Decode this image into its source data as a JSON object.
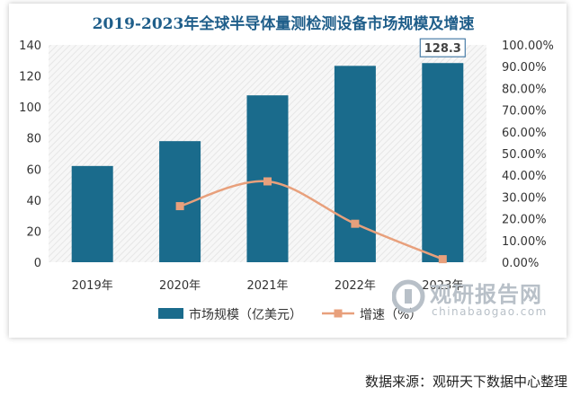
{
  "source": "数据来源：观研天下数据中心整理",
  "watermark": {
    "main": "观研报告网",
    "sub": "chinabaogao.com"
  },
  "chart_data": {
    "type": "bar",
    "title": "2019-2023年全球半导体量测检测设备市场规模及增速",
    "categories": [
      "2019年",
      "2020年",
      "2021年",
      "2022年",
      "2023年"
    ],
    "ylim": [
      0,
      140
    ],
    "y_ticks": [
      "0",
      "20",
      "40",
      "60",
      "80",
      "100",
      "120",
      "140"
    ],
    "y2lim": [
      0,
      100
    ],
    "y2_ticks": [
      "0.00%",
      "10.00%",
      "20.00%",
      "30.00%",
      "40.00%",
      "50.00%",
      "60.00%",
      "70.00%",
      "80.00%",
      "90.00%",
      "100.00%"
    ],
    "series": [
      {
        "name": "市场规模（亿美元）",
        "type": "bar",
        "axis": "left",
        "color": "#1a6b8c",
        "values": [
          62,
          78,
          107.5,
          126.5,
          128.3
        ]
      },
      {
        "name": "增速（%）",
        "type": "line",
        "axis": "right",
        "color": "#e8a07c",
        "values": [
          null,
          25.8,
          37.2,
          17.7,
          1.4
        ]
      }
    ],
    "data_labels": [
      {
        "index": 4,
        "text": "128.3"
      }
    ],
    "legend_position": "bottom",
    "grid": false
  }
}
